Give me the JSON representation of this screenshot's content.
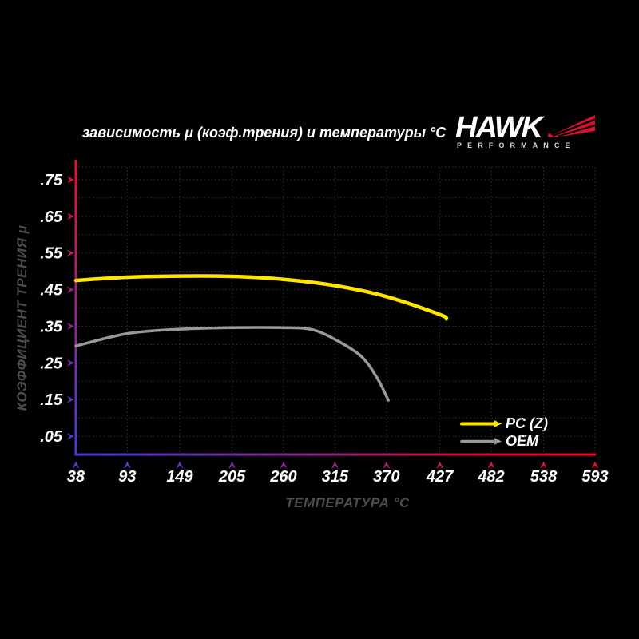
{
  "logo": {
    "brand": "HAWK",
    "sub": "PERFORMANCE"
  },
  "chart_data": {
    "type": "line",
    "title": "зависимость μ (коэф.трения) и температуры °C",
    "xlabel": "ТЕМПЕРАТУРА °C",
    "ylabel": "КОЭФФИЦИЕНТ ТРЕНИЯ μ",
    "x_ticks": [
      38,
      93,
      149,
      205,
      260,
      315,
      370,
      427,
      482,
      538,
      593
    ],
    "x_tick_labels": [
      "38",
      "93",
      "149",
      "205",
      "260",
      "315",
      "370",
      "427",
      "482",
      "538",
      "593"
    ],
    "y_ticks": [
      0.05,
      0.15,
      0.25,
      0.35,
      0.45,
      0.55,
      0.65,
      0.75
    ],
    "y_tick_labels": [
      ".05",
      ".15",
      ".25",
      ".35",
      ".45",
      ".55",
      ".65",
      ".75"
    ],
    "xlim": [
      38,
      593
    ],
    "ylim": [
      0,
      0.8
    ],
    "grid": "dotted",
    "legend_position": "lower right",
    "series": [
      {
        "name": "PC (Z)",
        "color": "#ffe400",
        "points": [
          [
            38,
            0.475
          ],
          [
            93,
            0.484
          ],
          [
            149,
            0.487
          ],
          [
            205,
            0.486
          ],
          [
            260,
            0.478
          ],
          [
            315,
            0.461
          ],
          [
            370,
            0.431
          ],
          [
            427,
            0.382
          ],
          [
            434,
            0.37
          ]
        ]
      },
      {
        "name": "OEM",
        "color": "#999999",
        "points": [
          [
            38,
            0.296
          ],
          [
            93,
            0.33
          ],
          [
            149,
            0.342
          ],
          [
            205,
            0.346
          ],
          [
            260,
            0.346
          ],
          [
            290,
            0.341
          ],
          [
            315,
            0.314
          ],
          [
            343,
            0.268
          ],
          [
            360,
            0.209
          ],
          [
            372,
            0.148
          ]
        ]
      }
    ],
    "colors": {
      "background": "#000000",
      "axis_cold": "#4a3ed2",
      "axis_mid": "#8c2a8e",
      "axis_hot": "#e31231",
      "grid": "#333333",
      "axis_label_text": "#4d4d4d",
      "tick_text": "#ffffff",
      "logo_red": "#d8102e"
    }
  }
}
